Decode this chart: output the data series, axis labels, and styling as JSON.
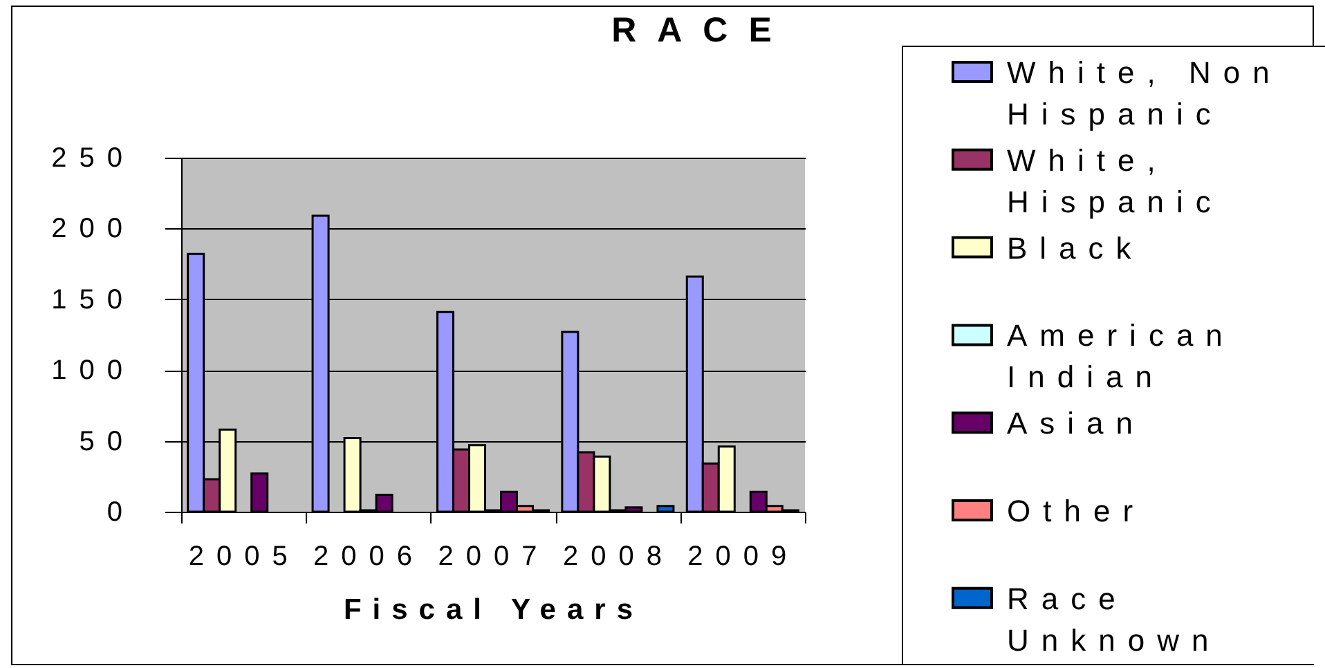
{
  "chart_data": {
    "type": "bar",
    "title": "RACE",
    "xlabel": "Fiscal Years",
    "categories": [
      "2005",
      "2006",
      "2007",
      "2008",
      "2009"
    ],
    "series": [
      {
        "name": "White, Non Hispanic",
        "color": "#9999ff",
        "values": [
          182,
          209,
          141,
          127,
          166
        ]
      },
      {
        "name": "White, Hispanic",
        "color": "#993366",
        "values": [
          23,
          null,
          44,
          42,
          34
        ]
      },
      {
        "name": "Black",
        "color": "#ffffcc",
        "values": [
          58,
          52,
          47,
          39,
          46
        ]
      },
      {
        "name": "American Indian",
        "color": "#ccffff",
        "values": [
          null,
          1,
          1,
          1,
          null
        ]
      },
      {
        "name": "Asian",
        "color": "#660066",
        "values": [
          27,
          12,
          14,
          3,
          14
        ]
      },
      {
        "name": "Other",
        "color": "#ff8080",
        "values": [
          null,
          null,
          4,
          null,
          4
        ]
      },
      {
        "name": "Race Unknown",
        "color": "#0066cc",
        "values": [
          null,
          null,
          1,
          4,
          1
        ]
      }
    ],
    "ylim": [
      0,
      250
    ],
    "yticks": [
      0,
      50,
      100,
      150,
      200,
      250
    ],
    "grid": "y",
    "legend": "right"
  }
}
